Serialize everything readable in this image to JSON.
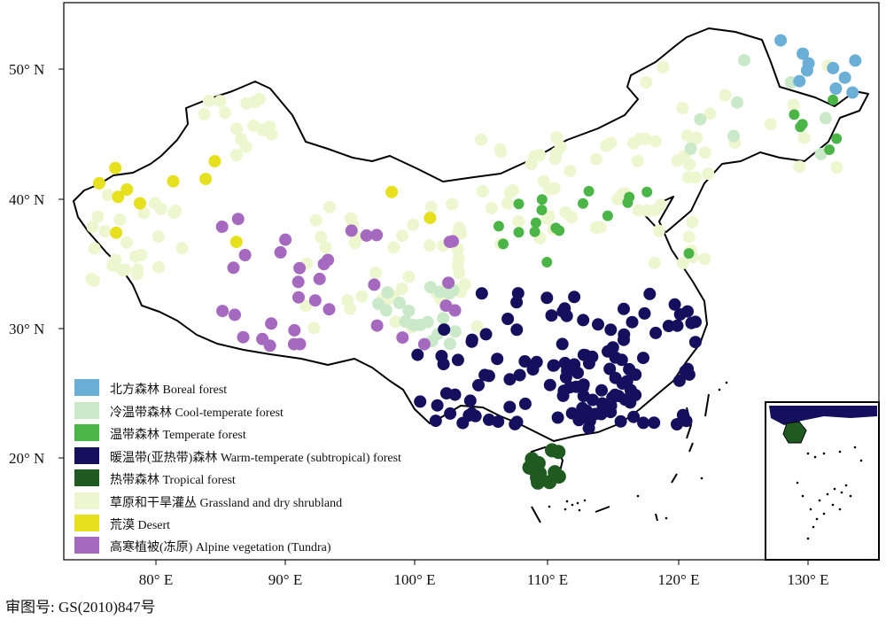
{
  "axes": {
    "y_ticks": [
      "50° N",
      "40° N",
      "30° N",
      "20° N"
    ],
    "x_ticks": [
      "80° E",
      "90° E",
      "100° E",
      "110° E",
      "120° E",
      "130° E"
    ]
  },
  "legend": {
    "items": [
      {
        "label": "北方森林 Boreal forest",
        "color": "#6bafd6"
      },
      {
        "label": "冷温带森林 Cool-temperate forest",
        "color": "#c9e9c8"
      },
      {
        "label": "温带森林 Temperate forest",
        "color": "#4cb548"
      },
      {
        "label": "暖温带(亚热带)森林 Warm-temperate (subtropical) forest",
        "color": "#15105e"
      },
      {
        "label": "热带森林 Tropical forest",
        "color": "#1f5a20"
      },
      {
        "label": "草原和干旱灌丛 Grassland and dry shrubland",
        "color": "#eef6cf"
      },
      {
        "label": "荒漠 Desert",
        "color": "#e6e01f"
      },
      {
        "label": "高寒植被(冻原) Alpine vegetation (Tundra)",
        "color": "#a56ac0"
      }
    ]
  },
  "approval_number": "审图号: GS(2010)847号"
}
